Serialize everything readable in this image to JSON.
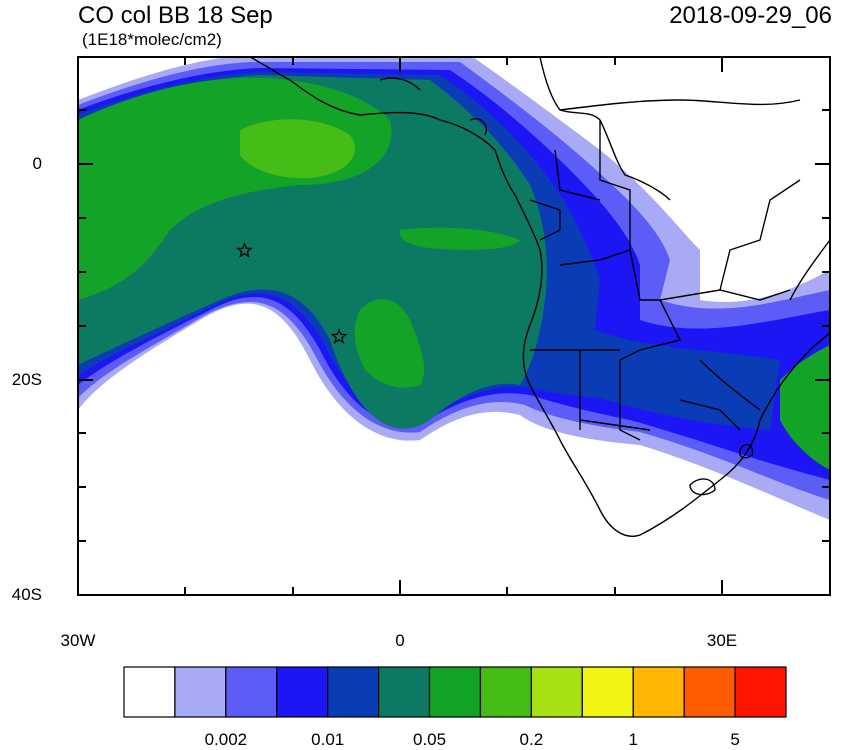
{
  "title": "CO col BB 18 Sep",
  "units": "(1E18*molec/cm2)",
  "datetime": "2018-09-29_06",
  "axes": {
    "x_ticks": [
      "30W",
      "0",
      "30E"
    ],
    "y_ticks": [
      "0",
      "20S",
      "40S"
    ]
  },
  "markers": [
    {
      "name": "star",
      "lon": -14.5,
      "lat": -8.0
    },
    {
      "name": "star",
      "lon": -5.7,
      "lat": -16.0
    }
  ],
  "colorbar": {
    "colors": [
      "#ffffff",
      "#a9aaf5",
      "#5c5cf7",
      "#1c16f4",
      "#0a3cb5",
      "#0c7a62",
      "#13a327",
      "#46bd17",
      "#a7e013",
      "#f2f512",
      "#ffb600",
      "#ff5c00",
      "#ff1400"
    ],
    "labels": [
      "0.002",
      "0.01",
      "0.05",
      "0.2",
      "1",
      "5"
    ]
  },
  "chart_data": {
    "type": "heatmap",
    "title": "CO col BB 18 Sep",
    "subtitle": "(1E18*molec/cm2)",
    "timestamp": "2018-09-29_06",
    "xlim": [
      -30,
      40
    ],
    "ylim": [
      -40,
      10
    ],
    "x_tick_values": [
      -30,
      0,
      30
    ],
    "y_tick_values": [
      0,
      -20,
      -40
    ],
    "colorbar_levels": [
      0.002,
      0.01,
      0.05,
      0.2,
      1,
      5
    ]
  }
}
